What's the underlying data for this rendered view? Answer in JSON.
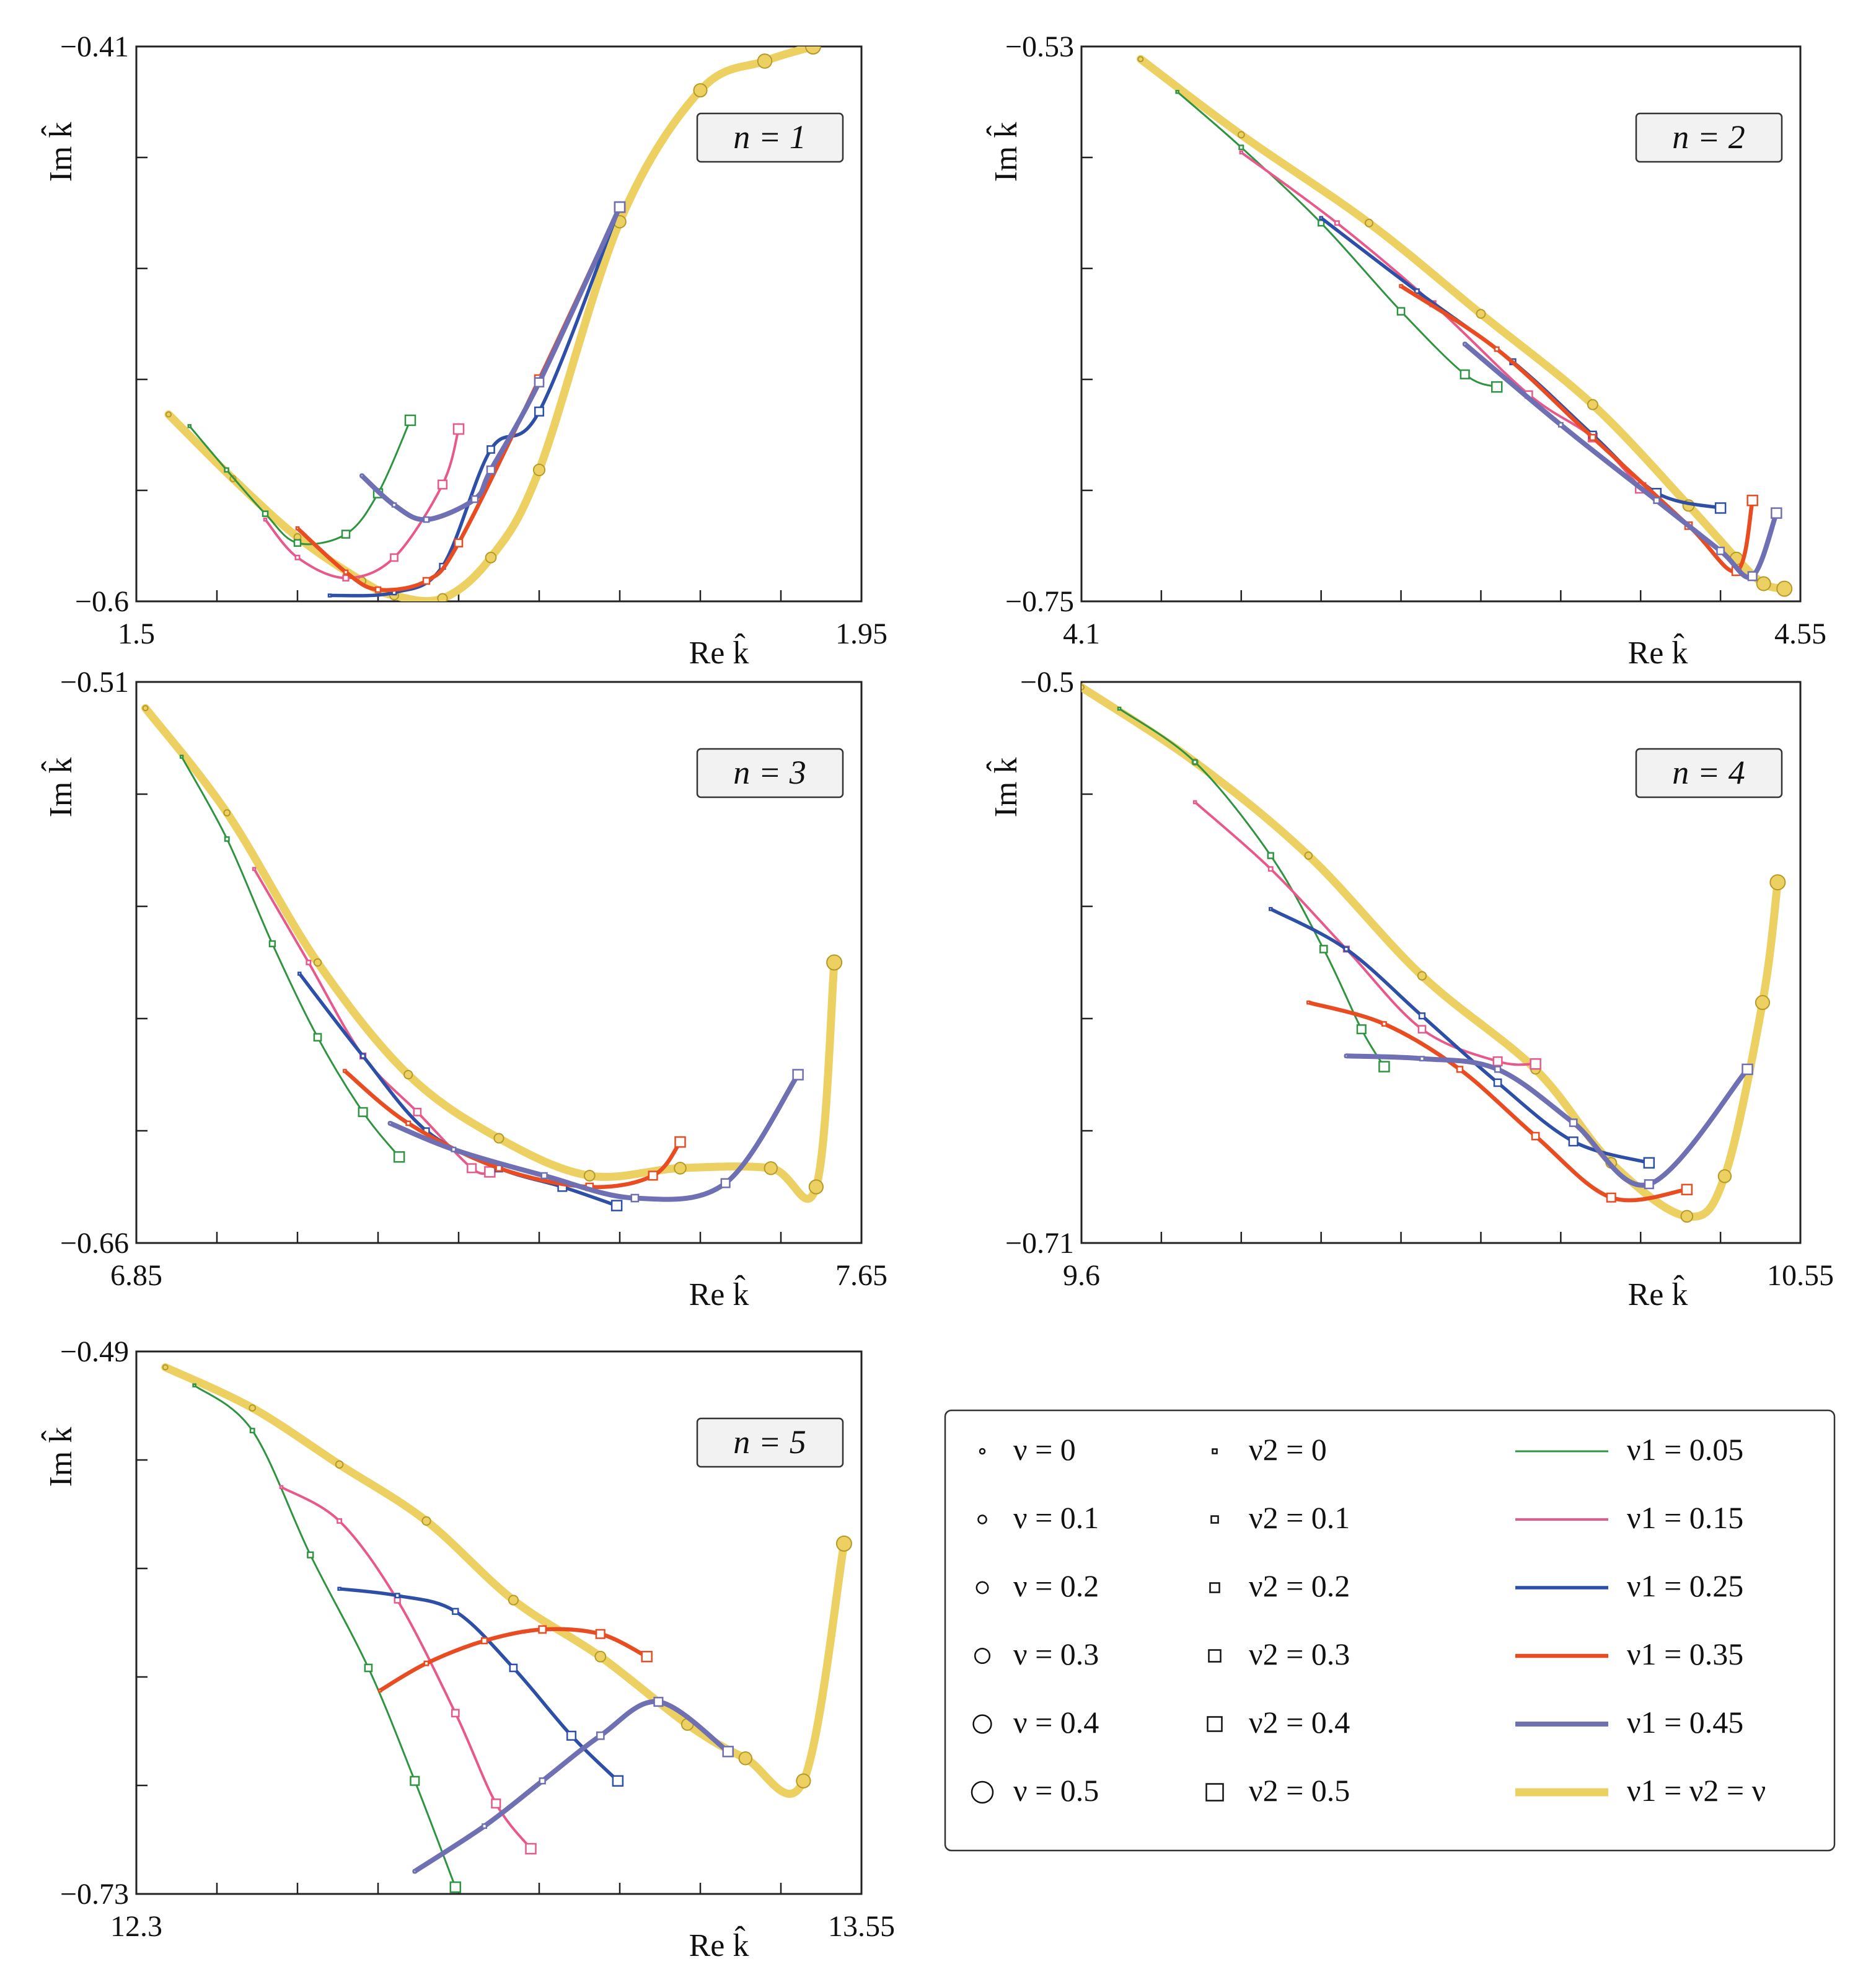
{
  "chart_data": [
    {
      "type": "line",
      "panel_label": "n = 1",
      "xlabel": "Re k̂",
      "ylabel": "Im k̂",
      "x_tick_labels": [
        "1.5",
        "1.95"
      ],
      "y_tick_labels": [
        "−0.41",
        "−0.6"
      ],
      "xlim": [
        1.5,
        1.95
      ],
      "ylim": [
        -0.6,
        -0.41
      ],
      "series": [
        {
          "name": "ν1 = ν2 = ν",
          "x": [
            1.52,
            1.56,
            1.6,
            1.64,
            1.66,
            1.69,
            1.72,
            1.75,
            1.8,
            1.85,
            1.89,
            1.92
          ],
          "y": [
            -0.536,
            -0.558,
            -0.578,
            -0.593,
            -0.598,
            -0.599,
            -0.585,
            -0.555,
            -0.47,
            -0.425,
            -0.415,
            -0.41
          ]
        },
        {
          "name": "ν1 = 0.05",
          "x": [
            1.533,
            1.556,
            1.58,
            1.6,
            1.63,
            1.65,
            1.67
          ],
          "y": [
            -0.54,
            -0.555,
            -0.57,
            -0.58,
            -0.577,
            -0.563,
            -0.538
          ]
        },
        {
          "name": "ν1 = 0.15",
          "x": [
            1.58,
            1.6,
            1.63,
            1.66,
            1.69,
            1.7
          ],
          "y": [
            -0.572,
            -0.585,
            -0.592,
            -0.585,
            -0.56,
            -0.541
          ]
        },
        {
          "name": "ν1 = 0.25",
          "x": [
            1.62,
            1.66,
            1.69,
            1.72,
            1.75,
            1.8
          ],
          "y": [
            -0.598,
            -0.597,
            -0.588,
            -0.548,
            -0.535,
            -0.465
          ]
        },
        {
          "name": "ν1 = 0.35",
          "x": [
            1.6,
            1.63,
            1.65,
            1.68,
            1.7,
            1.75,
            1.8
          ],
          "y": [
            -0.575,
            -0.59,
            -0.596,
            -0.593,
            -0.58,
            -0.524,
            -0.465
          ]
        },
        {
          "name": "ν1 = 0.45",
          "x": [
            1.64,
            1.66,
            1.68,
            1.71,
            1.72,
            1.75,
            1.8
          ],
          "y": [
            -0.557,
            -0.567,
            -0.572,
            -0.565,
            -0.555,
            -0.525,
            -0.465
          ]
        }
      ]
    },
    {
      "type": "line",
      "panel_label": "n = 2",
      "xlabel": "Re k̂",
      "ylabel": "Im k̂",
      "x_tick_labels": [
        "4.1",
        "4.55"
      ],
      "y_tick_labels": [
        "−0.53",
        "−0.75"
      ],
      "xlim": [
        4.1,
        4.55
      ],
      "ylim": [
        -0.75,
        -0.53
      ],
      "series": [
        {
          "name": "ν1 = ν2 = ν",
          "x": [
            4.137,
            4.2,
            4.28,
            4.35,
            4.42,
            4.48,
            4.51,
            4.527,
            4.54
          ],
          "y": [
            -0.535,
            -0.565,
            -0.6,
            -0.636,
            -0.672,
            -0.712,
            -0.733,
            -0.743,
            -0.745
          ]
        },
        {
          "name": "ν1 = 0.05",
          "x": [
            4.16,
            4.2,
            4.25,
            4.3,
            4.34,
            4.36
          ],
          "y": [
            -0.548,
            -0.57,
            -0.6,
            -0.635,
            -0.66,
            -0.665
          ]
        },
        {
          "name": "ν1 = 0.15",
          "x": [
            4.2,
            4.26,
            4.32,
            4.38,
            4.42,
            4.45
          ],
          "y": [
            -0.572,
            -0.6,
            -0.632,
            -0.668,
            -0.685,
            -0.705
          ]
        },
        {
          "name": "ν1 = 0.25",
          "x": [
            4.25,
            4.31,
            4.37,
            4.42,
            4.46,
            4.5
          ],
          "y": [
            -0.598,
            -0.627,
            -0.655,
            -0.684,
            -0.707,
            -0.713
          ]
        },
        {
          "name": "ν1 = 0.35",
          "x": [
            4.3,
            4.36,
            4.42,
            4.48,
            4.51,
            4.52
          ],
          "y": [
            -0.625,
            -0.65,
            -0.685,
            -0.72,
            -0.738,
            -0.71
          ]
        },
        {
          "name": "ν1 = 0.45",
          "x": [
            4.34,
            4.4,
            4.46,
            4.5,
            4.52,
            4.535
          ],
          "y": [
            -0.648,
            -0.68,
            -0.71,
            -0.73,
            -0.74,
            -0.715
          ]
        }
      ]
    },
    {
      "type": "line",
      "panel_label": "n = 3",
      "xlabel": "Re k̂",
      "ylabel": "Im k̂",
      "x_tick_labels": [
        "6.85",
        "7.65"
      ],
      "y_tick_labels": [
        "−0.51",
        "−0.66"
      ],
      "xlim": [
        6.85,
        7.65
      ],
      "ylim": [
        -0.66,
        -0.51
      ],
      "series": [
        {
          "name": "ν1 = ν2 = ν",
          "x": [
            6.86,
            6.95,
            7.05,
            7.15,
            7.25,
            7.35,
            7.45,
            7.55,
            7.6,
            7.62
          ],
          "y": [
            -0.517,
            -0.545,
            -0.585,
            -0.615,
            -0.632,
            -0.642,
            -0.64,
            -0.64,
            -0.645,
            -0.585
          ]
        },
        {
          "name": "ν1 = 0.05",
          "x": [
            6.9,
            6.95,
            7.0,
            7.05,
            7.1,
            7.14
          ],
          "y": [
            -0.53,
            -0.552,
            -0.58,
            -0.605,
            -0.625,
            -0.637
          ]
        },
        {
          "name": "ν1 = 0.15",
          "x": [
            6.98,
            7.04,
            7.1,
            7.16,
            7.22,
            7.24
          ],
          "y": [
            -0.56,
            -0.585,
            -0.61,
            -0.625,
            -0.64,
            -0.641
          ]
        },
        {
          "name": "ν1 = 0.25",
          "x": [
            7.03,
            7.1,
            7.17,
            7.25,
            7.32,
            7.38
          ],
          "y": [
            -0.588,
            -0.61,
            -0.63,
            -0.64,
            -0.645,
            -0.65
          ]
        },
        {
          "name": "ν1 = 0.35",
          "x": [
            7.08,
            7.15,
            7.25,
            7.35,
            7.42,
            7.45
          ],
          "y": [
            -0.614,
            -0.628,
            -0.64,
            -0.645,
            -0.642,
            -0.633
          ]
        },
        {
          "name": "ν1 = 0.45",
          "x": [
            7.13,
            7.2,
            7.3,
            7.4,
            7.5,
            7.58
          ],
          "y": [
            -0.628,
            -0.635,
            -0.642,
            -0.648,
            -0.644,
            -0.615
          ]
        }
      ]
    },
    {
      "type": "line",
      "panel_label": "n = 4",
      "xlabel": "Re k̂",
      "ylabel": "Im k̂",
      "x_tick_labels": [
        "9.6",
        "10.55"
      ],
      "y_tick_labels": [
        "−0.5",
        "−0.71"
      ],
      "xlim": [
        9.6,
        10.55
      ],
      "ylim": [
        -0.71,
        -0.5
      ],
      "series": [
        {
          "name": "ν1 = ν2 = ν",
          "x": [
            9.6,
            9.75,
            9.9,
            10.05,
            10.2,
            10.3,
            10.4,
            10.45,
            10.5,
            10.52
          ],
          "y": [
            -0.502,
            -0.53,
            -0.565,
            -0.61,
            -0.645,
            -0.68,
            -0.7,
            -0.685,
            -0.62,
            -0.575
          ]
        },
        {
          "name": "ν1 = 0.05",
          "x": [
            9.65,
            9.75,
            9.85,
            9.92,
            9.97,
            10.0
          ],
          "y": [
            -0.51,
            -0.53,
            -0.565,
            -0.6,
            -0.63,
            -0.644
          ]
        },
        {
          "name": "ν1 = 0.15",
          "x": [
            9.75,
            9.85,
            9.95,
            10.05,
            10.15,
            10.2
          ],
          "y": [
            -0.545,
            -0.57,
            -0.6,
            -0.63,
            -0.642,
            -0.643
          ]
        },
        {
          "name": "ν1 = 0.25",
          "x": [
            9.85,
            9.95,
            10.05,
            10.15,
            10.25,
            10.35
          ],
          "y": [
            -0.585,
            -0.6,
            -0.625,
            -0.65,
            -0.672,
            -0.68
          ]
        },
        {
          "name": "ν1 = 0.35",
          "x": [
            9.9,
            10.0,
            10.1,
            10.2,
            10.3,
            10.4
          ],
          "y": [
            -0.62,
            -0.628,
            -0.645,
            -0.67,
            -0.693,
            -0.69
          ]
        },
        {
          "name": "ν1 = 0.45",
          "x": [
            9.95,
            10.05,
            10.15,
            10.25,
            10.35,
            10.48
          ],
          "y": [
            -0.64,
            -0.641,
            -0.645,
            -0.665,
            -0.688,
            -0.645
          ]
        }
      ]
    },
    {
      "type": "line",
      "panel_label": "n = 5",
      "xlabel": "Re k̂",
      "ylabel": "Im k̂",
      "x_tick_labels": [
        "12.3",
        "13.55"
      ],
      "y_tick_labels": [
        "−0.49",
        "−0.73"
      ],
      "xlim": [
        12.3,
        13.55
      ],
      "ylim": [
        -0.73,
        -0.49
      ],
      "series": [
        {
          "name": "ν1 = ν2 = ν",
          "x": [
            12.35,
            12.5,
            12.65,
            12.8,
            12.95,
            13.1,
            13.25,
            13.35,
            13.45,
            13.52
          ],
          "y": [
            -0.497,
            -0.515,
            -0.54,
            -0.565,
            -0.6,
            -0.625,
            -0.655,
            -0.67,
            -0.68,
            -0.575
          ]
        },
        {
          "name": "ν1 = 0.05",
          "x": [
            12.4,
            12.5,
            12.6,
            12.7,
            12.78,
            12.85
          ],
          "y": [
            -0.505,
            -0.525,
            -0.58,
            -0.63,
            -0.68,
            -0.727
          ]
        },
        {
          "name": "ν1 = 0.15",
          "x": [
            12.55,
            12.65,
            12.75,
            12.85,
            12.92,
            12.98
          ],
          "y": [
            -0.55,
            -0.565,
            -0.6,
            -0.65,
            -0.69,
            -0.71
          ]
        },
        {
          "name": "ν1 = 0.25",
          "x": [
            12.65,
            12.75,
            12.85,
            12.95,
            13.05,
            13.13
          ],
          "y": [
            -0.595,
            -0.598,
            -0.605,
            -0.63,
            -0.66,
            -0.68
          ]
        },
        {
          "name": "ν1 = 0.35",
          "x": [
            12.72,
            12.8,
            12.9,
            13.0,
            13.1,
            13.18
          ],
          "y": [
            -0.64,
            -0.628,
            -0.618,
            -0.613,
            -0.615,
            -0.625
          ]
        },
        {
          "name": "ν1 = 0.45",
          "x": [
            12.78,
            12.9,
            13.0,
            13.1,
            13.2,
            13.32
          ],
          "y": [
            -0.72,
            -0.7,
            -0.68,
            -0.66,
            -0.645,
            -0.667
          ]
        }
      ]
    }
  ],
  "legend": {
    "nu_markers": [
      "ν = 0",
      "ν = 0.1",
      "ν = 0.2",
      "ν = 0.3",
      "ν = 0.4",
      "ν = 0.5"
    ],
    "nu2_markers": [
      "ν2 = 0",
      "ν2 = 0.1",
      "ν2 = 0.2",
      "ν2 = 0.3",
      "ν2 = 0.4",
      "ν2 = 0.5"
    ],
    "nu1_lines": [
      "ν1 = 0.05",
      "ν1 = 0.15",
      "ν1 = 0.25",
      "ν1 = 0.35",
      "ν1 = 0.45",
      "ν1 = ν2 = ν"
    ]
  },
  "colors": {
    "ν1 = 0.05": "#2e9440",
    "ν1 = 0.15": "#e8588a",
    "ν1 = 0.25": "#2d4fa8",
    "ν1 = 0.35": "#ea4c22",
    "ν1 = 0.45": "#6f6fb3",
    "ν1 = ν2 = ν": "#ecd062"
  }
}
